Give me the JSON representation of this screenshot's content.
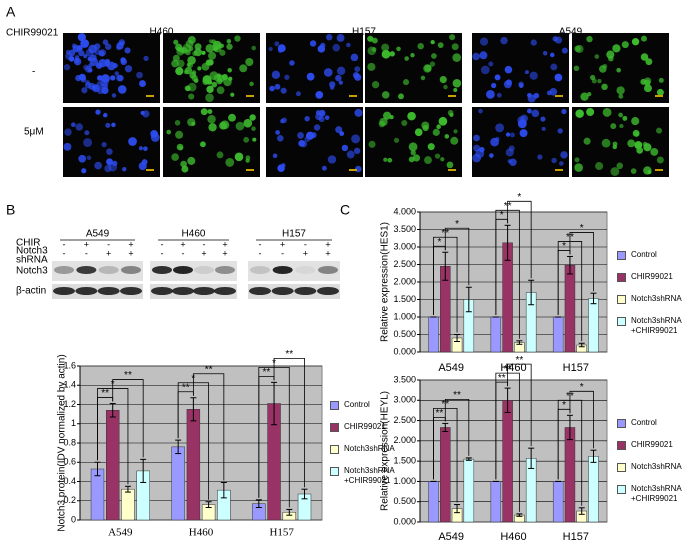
{
  "figure": {
    "panel_a": {
      "label": "A",
      "treatment_label": "CHIR99021",
      "cell_lines": [
        "H460",
        "H157",
        "A549"
      ],
      "conditions": [
        "-",
        "5μM"
      ]
    },
    "panel_b": {
      "label": "B",
      "blot": {
        "cell_lines": [
          "A549",
          "H460",
          "H157"
        ],
        "rows": [
          {
            "label": [
              "CHIR"
            ],
            "signs": [
              [
                "-",
                "+",
                "-",
                "+"
              ],
              [
                "-",
                "+",
                "-",
                "+"
              ],
              [
                "-",
                "+",
                "-",
                "+"
              ]
            ]
          },
          {
            "label": [
              "Notch3",
              "shRNA"
            ],
            "signs": [
              [
                "-",
                "-",
                "+",
                "+"
              ],
              [
                "-",
                "-",
                "+",
                "+"
              ],
              [
                "-",
                "-",
                "+",
                "+"
              ]
            ]
          }
        ],
        "bands": [
          "Notch3",
          "β-actin"
        ]
      }
    },
    "panel_c": {
      "label": "C"
    }
  },
  "chart_data": [
    {
      "type": "bar",
      "y_label": "Notch3 protein(IDV normalized by actin)",
      "categories": [
        "A549",
        "H460",
        "H157"
      ],
      "series": [
        {
          "name": "Control",
          "color": "#9999ff",
          "values": [
            0.53,
            0.76,
            0.17
          ],
          "errors": [
            0.07,
            0.07,
            0.04
          ]
        },
        {
          "name": "CHIR99021",
          "color": "#993366",
          "values": [
            1.14,
            1.15,
            1.21
          ],
          "errors": [
            0.07,
            0.12,
            0.22
          ]
        },
        {
          "name": "Notch3shRNA",
          "color": "#ffffcc",
          "values": [
            0.32,
            0.16,
            0.08
          ],
          "errors": [
            0.03,
            0.03,
            0.03
          ]
        },
        {
          "name": "Notch3shRNA +CHIR99021",
          "color": "#ccffff",
          "values": [
            0.51,
            0.31,
            0.27
          ],
          "errors": [
            0.12,
            0.08,
            0.05
          ]
        }
      ],
      "ylim": [
        0,
        1.6
      ],
      "yticks": [
        0,
        0.2,
        0.4,
        0.6,
        0.8,
        1,
        1.2,
        1.4,
        1.6
      ],
      "grid": true,
      "significance": [
        {
          "category": 0,
          "series": [
            0,
            1
          ],
          "label": "**"
        },
        {
          "category": 0,
          "series": [
            0,
            2
          ],
          "label": "*"
        },
        {
          "category": 0,
          "series": [
            1,
            3
          ],
          "label": "**"
        },
        {
          "category": 1,
          "series": [
            0,
            1
          ],
          "label": "**"
        },
        {
          "category": 1,
          "series": [
            0,
            2
          ],
          "label": "*"
        },
        {
          "category": 1,
          "series": [
            1,
            3
          ],
          "label": "**"
        },
        {
          "category": 2,
          "series": [
            0,
            1
          ],
          "label": "**"
        },
        {
          "category": 2,
          "series": [
            0,
            2
          ],
          "label": "*"
        },
        {
          "category": 2,
          "series": [
            1,
            3
          ],
          "label": "**"
        }
      ]
    },
    {
      "type": "bar",
      "y_label": "Relative expression(HES1)",
      "categories": [
        "A549",
        "H460",
        "H157"
      ],
      "series": [
        {
          "name": "Control",
          "color": "#9999ff",
          "values": [
            1,
            1,
            1
          ],
          "errors": [
            0,
            0,
            0
          ]
        },
        {
          "name": "CHIR99021",
          "color": "#993366",
          "values": [
            2.45,
            3.12,
            2.48
          ],
          "errors": [
            0.4,
            0.5,
            0.25
          ]
        },
        {
          "name": "Notch3shRNA",
          "color": "#ffffcc",
          "values": [
            0.4,
            0.27,
            0.2
          ],
          "errors": [
            0.1,
            0.05,
            0.05
          ]
        },
        {
          "name": "Notch3shRNA +CHIR99021",
          "color": "#ccffff",
          "values": [
            1.5,
            1.7,
            1.53
          ],
          "errors": [
            0.35,
            0.35,
            0.15
          ]
        }
      ],
      "ylim": [
        0,
        4
      ],
      "yticks": [
        {
          "value": 0,
          "label": "0.000"
        },
        {
          "value": 0.5,
          "label": "0.500"
        },
        {
          "value": 1,
          "label": "1.000"
        },
        {
          "value": 1.5,
          "label": "1.500"
        },
        {
          "value": 2,
          "label": "2.000"
        },
        {
          "value": 2.5,
          "label": "2.500"
        },
        {
          "value": 3,
          "label": "3.000"
        },
        {
          "value": 3.5,
          "label": "3.500"
        },
        {
          "value": 4,
          "label": "4.000"
        }
      ],
      "grid": true,
      "significance": [
        {
          "category": 0,
          "series": [
            0,
            1
          ],
          "label": "*"
        },
        {
          "category": 0,
          "series": [
            0,
            2
          ],
          "label": "**"
        },
        {
          "category": 0,
          "series": [
            1,
            3
          ],
          "label": "*"
        },
        {
          "category": 1,
          "series": [
            0,
            1
          ],
          "label": "*"
        },
        {
          "category": 1,
          "series": [
            0,
            2
          ],
          "label": "**"
        },
        {
          "category": 1,
          "series": [
            1,
            3
          ],
          "label": "*"
        },
        {
          "category": 2,
          "series": [
            0,
            1
          ],
          "label": "*"
        },
        {
          "category": 2,
          "series": [
            0,
            2
          ],
          "label": "**"
        },
        {
          "category": 2,
          "series": [
            1,
            3
          ],
          "label": "*"
        }
      ]
    },
    {
      "type": "bar",
      "y_label": "Relative expression(HEYL)",
      "categories": [
        "A549",
        "H460",
        "H157"
      ],
      "series": [
        {
          "name": "Control",
          "color": "#9999ff",
          "values": [
            1,
            1,
            1
          ],
          "errors": [
            0,
            0,
            0
          ]
        },
        {
          "name": "CHIR99021",
          "color": "#993366",
          "values": [
            2.33,
            3.0,
            2.33
          ],
          "errors": [
            0.1,
            0.3,
            0.3
          ]
        },
        {
          "name": "Notch3shRNA",
          "color": "#ffffcc",
          "values": [
            0.33,
            0.17,
            0.27
          ],
          "errors": [
            0.1,
            0.03,
            0.08
          ]
        },
        {
          "name": "Notch3shRNA +CHIR99021",
          "color": "#ccffff",
          "values": [
            1.55,
            1.57,
            1.62
          ],
          "errors": [
            0.03,
            0.25,
            0.15
          ]
        }
      ],
      "ylim": [
        0,
        3.5
      ],
      "yticks": [
        {
          "value": 0,
          "label": "0.000"
        },
        {
          "value": 0.5,
          "label": "0.500"
        },
        {
          "value": 1,
          "label": "1.000"
        },
        {
          "value": 1.5,
          "label": "1.500"
        },
        {
          "value": 2,
          "label": "2.000"
        },
        {
          "value": 2.5,
          "label": "2.500"
        },
        {
          "value": 3,
          "label": "3.000"
        },
        {
          "value": 3.5,
          "label": "3.500"
        }
      ],
      "grid": true,
      "significance": [
        {
          "category": 0,
          "series": [
            0,
            1
          ],
          "label": "**"
        },
        {
          "category": 0,
          "series": [
            0,
            2
          ],
          "label": "**"
        },
        {
          "category": 0,
          "series": [
            1,
            3
          ],
          "label": "**"
        },
        {
          "category": 1,
          "series": [
            0,
            1
          ],
          "label": "**"
        },
        {
          "category": 1,
          "series": [
            0,
            2
          ],
          "label": "**"
        },
        {
          "category": 1,
          "series": [
            1,
            3
          ],
          "label": "**"
        },
        {
          "category": 2,
          "series": [
            0,
            1
          ],
          "label": "*"
        },
        {
          "category": 2,
          "series": [
            0,
            2
          ],
          "label": "**"
        },
        {
          "category": 2,
          "series": [
            1,
            3
          ],
          "label": "*"
        }
      ]
    }
  ]
}
